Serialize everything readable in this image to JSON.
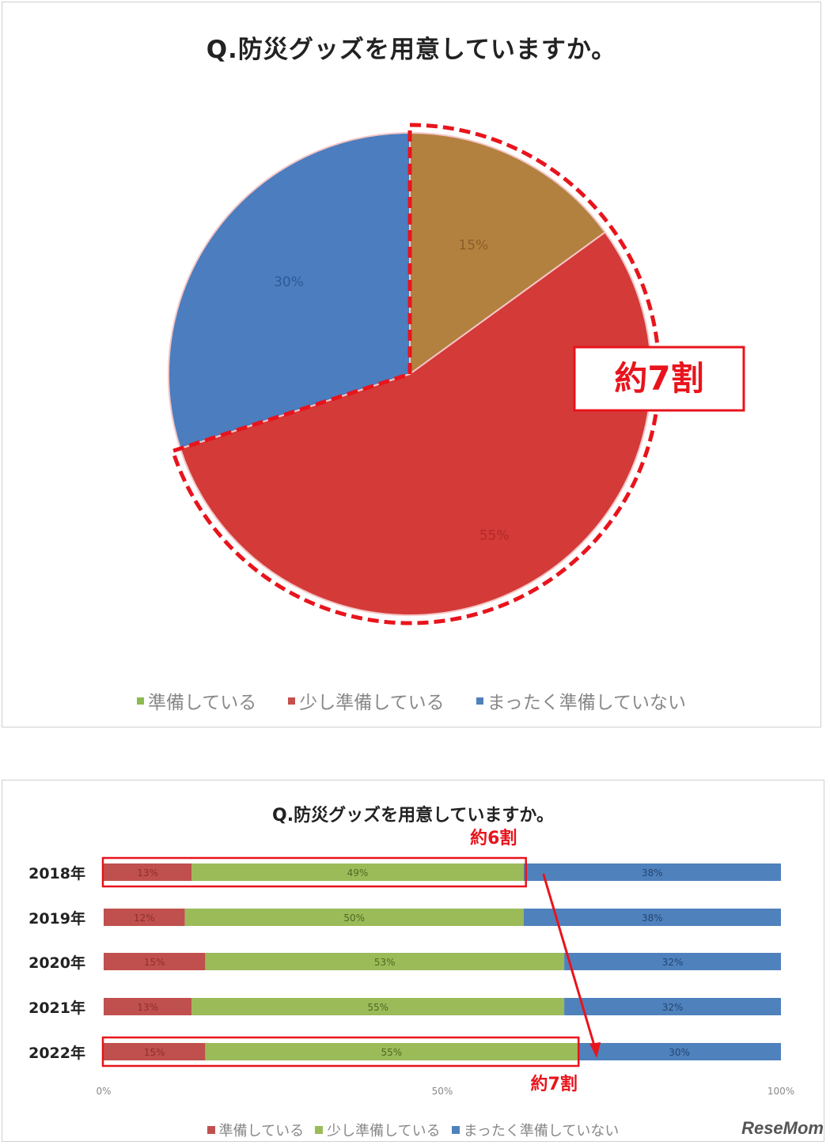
{
  "chart_data": [
    {
      "type": "pie",
      "title": "Q.防災グッズを用意していますか。",
      "categories": [
        "準備している",
        "少し準備している",
        "まったく準備していない"
      ],
      "values": [
        15,
        55,
        30
      ],
      "data_labels": [
        "15%",
        "55%",
        "30%"
      ],
      "colors": [
        "#b3813f",
        "#d33a38",
        "#4b7dbf"
      ],
      "legend_colors": [
        "#8bbb4e",
        "#c5504b",
        "#4f81bd"
      ],
      "legend": "bottom",
      "annotation": "約7割"
    },
    {
      "type": "bar",
      "orientation": "horizontal",
      "stacked": true,
      "title": "Q.防災グッズを用意していますか。",
      "categories": [
        "2018年",
        "2019年",
        "2020年",
        "2021年",
        "2022年"
      ],
      "series": [
        {
          "name": "準備している",
          "values": [
            13,
            12,
            15,
            13,
            15
          ],
          "labels": [
            "13%",
            "12%",
            "15%",
            "13%",
            "15%"
          ],
          "color": "#c0504d"
        },
        {
          "name": "少し準備している",
          "values": [
            49,
            50,
            53,
            55,
            55
          ],
          "labels": [
            "49%",
            "50%",
            "53%",
            "55%",
            "55%"
          ],
          "color": "#9bbb59"
        },
        {
          "name": "まったく準備していない",
          "values": [
            38,
            38,
            32,
            32,
            30
          ],
          "labels": [
            "38%",
            "38%",
            "32%",
            "32%",
            "30%"
          ],
          "color": "#4f81bd"
        }
      ],
      "xlim": [
        0,
        100
      ],
      "xticks": [
        "0%",
        "50%",
        "100%"
      ],
      "legend": "bottom",
      "annotations": [
        "約6割",
        "約7割"
      ],
      "annotation_color": "#e8141c"
    }
  ],
  "watermark": "ReseMom"
}
